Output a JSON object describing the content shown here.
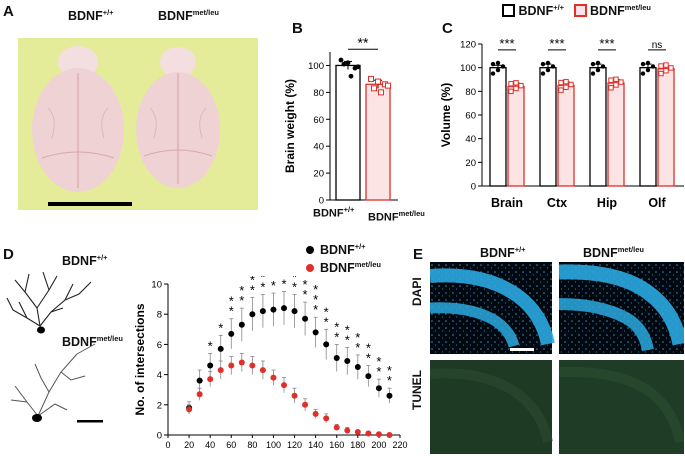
{
  "panels": {
    "a": {
      "label": "A",
      "genotype_left": "BDNF",
      "genotype_left_sup": "+/+",
      "genotype_right": "BDNF",
      "genotype_right_sup": "met/leu",
      "colors": {
        "background": "#e4ec9a",
        "brain": "#efd2d4"
      }
    },
    "d_images": {
      "label": "D",
      "genotype_top": "BDNF",
      "genotype_top_sup": "+/+",
      "genotype_bottom": "BDNF",
      "genotype_bottom_sup": "met/leu"
    },
    "e": {
      "label": "E",
      "col_left": "BDNF",
      "col_left_sup": "+/+",
      "col_right": "BDNF",
      "col_right_sup": "met/leu",
      "row_top": "DAPI",
      "row_bottom": "TUNEL",
      "colors": {
        "dapi": "#2aa9e0",
        "tunel": "#1e3a24"
      }
    }
  },
  "chart_data": [
    {
      "id": "B",
      "label": "B",
      "type": "bar",
      "ylabel": "Brain weight (%)",
      "ylim": [
        0,
        110
      ],
      "yticks": [
        "0",
        "20",
        "40",
        "60",
        "80",
        "100"
      ],
      "categories": [
        "BDNF",
        "BDNF"
      ],
      "category_sups": [
        "+/+",
        "met/leu"
      ],
      "values": [
        100,
        86
      ],
      "errors": [
        3,
        3
      ],
      "points": [
        [
          104,
          102,
          98,
          101,
          92,
          99
        ],
        [
          90,
          88,
          86,
          83,
          80,
          85
        ]
      ],
      "significance": "**",
      "colors": {
        "wt": "#000000",
        "mut": "#e0302a",
        "mut_fill": "#fde4e4"
      }
    },
    {
      "id": "C",
      "label": "C",
      "type": "bar",
      "ylabel": "Volume (%)",
      "ylim": [
        0,
        120
      ],
      "yticks": [
        "0",
        "20",
        "40",
        "60",
        "80",
        "100",
        "120"
      ],
      "legend": [
        {
          "name": "BDNF",
          "sup": "+/+"
        },
        {
          "name": "BDNF",
          "sup": "met/leu"
        }
      ],
      "categories": [
        "Brain",
        "Ctx",
        "Hip",
        "Olf"
      ],
      "series": [
        {
          "name": "BDNF+/+",
          "values": [
            100,
            100,
            100,
            100
          ],
          "errors": [
            2,
            3,
            3,
            3
          ]
        },
        {
          "name": "BDNFmet/leu",
          "values": [
            84,
            85,
            87,
            99
          ],
          "errors": [
            3,
            3,
            3,
            2
          ]
        }
      ],
      "significance": [
        "***",
        "***",
        "***",
        "ns"
      ],
      "colors": {
        "wt": "#000000",
        "mut": "#e0302a",
        "mut_fill": "#fde4e4"
      }
    },
    {
      "id": "D",
      "label": "D",
      "type": "scatter",
      "ylabel": "No. of intersections",
      "xlim": [
        0,
        220
      ],
      "ylim": [
        0,
        10
      ],
      "xticks": [
        "0",
        "20",
        "40",
        "60",
        "80",
        "100",
        "120",
        "140",
        "160",
        "180",
        "200",
        "220"
      ],
      "yticks": [
        "0",
        "2",
        "4",
        "6",
        "8",
        "10"
      ],
      "legend": [
        {
          "name": "BDNF",
          "sup": "+/+"
        },
        {
          "name": "BDNF",
          "sup": "met/leu"
        }
      ],
      "x": [
        20,
        30,
        40,
        50,
        60,
        70,
        80,
        90,
        100,
        110,
        120,
        130,
        140,
        150,
        160,
        170,
        180,
        190,
        200,
        210
      ],
      "series": [
        {
          "name": "BDNF+/+",
          "values": [
            1.8,
            3.6,
            4.6,
            5.7,
            6.7,
            7.3,
            8.0,
            8.2,
            8.3,
            8.4,
            8.2,
            7.7,
            6.8,
            6.0,
            5.1,
            4.9,
            4.5,
            3.9,
            3.1,
            2.6
          ],
          "errors": [
            0.4,
            0.7,
            0.8,
            0.9,
            1.0,
            1.1,
            1.1,
            1.1,
            1.1,
            1.1,
            1.1,
            1.1,
            1.0,
            1.0,
            0.9,
            0.9,
            0.8,
            0.7,
            0.6,
            0.5
          ]
        },
        {
          "name": "BDNFmet/leu",
          "values": [
            1.7,
            2.7,
            3.7,
            4.3,
            4.6,
            4.8,
            4.6,
            4.3,
            3.8,
            3.3,
            2.6,
            2.0,
            1.4,
            1.1,
            0.5,
            0.3,
            0.2,
            0.1,
            0.05,
            0.0
          ],
          "errors": [
            0.3,
            0.4,
            0.5,
            0.6,
            0.6,
            0.6,
            0.6,
            0.6,
            0.5,
            0.5,
            0.5,
            0.4,
            0.3,
            0.3,
            0.2,
            0.2,
            0.1,
            0.1,
            0.1,
            0.0
          ]
        }
      ],
      "stars": [
        0,
        0,
        1,
        1,
        2,
        2,
        3,
        3,
        3,
        3,
        3,
        3,
        3,
        2,
        2,
        2,
        2,
        2,
        2,
        2
      ],
      "colors": {
        "wt": "#000000",
        "mut": "#e0302a",
        "err": "#888888"
      }
    }
  ]
}
